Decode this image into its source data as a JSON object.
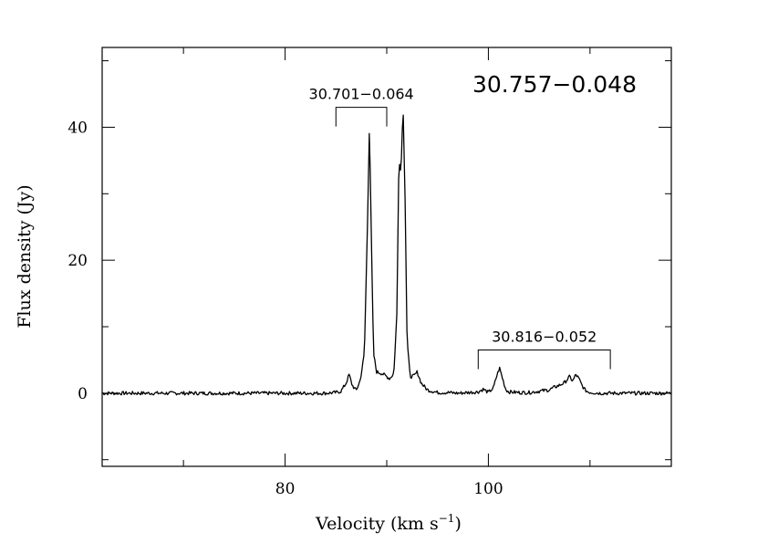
{
  "chart_data": {
    "type": "line",
    "title": "30.757−0.048",
    "xlabel": "Velocity (km s",
    "xlabel_exp": "−1",
    "xlabel_close": ")",
    "ylabel": "Flux density (Jy)",
    "xlim": [
      62,
      118
    ],
    "ylim": [
      -11,
      52
    ],
    "x_ticks": [
      80,
      100
    ],
    "x_tick_labels": [
      "80",
      "100"
    ],
    "x_minor_ticks": [
      70,
      90,
      110
    ],
    "y_ticks": [
      0,
      20,
      40
    ],
    "y_tick_labels": [
      "0",
      "20",
      "40"
    ],
    "y_minor_ticks": [
      -10,
      10,
      30,
      50
    ],
    "grid": false,
    "annotations": [
      {
        "label": "30.701−0.064",
        "x_start": 85,
        "x_end": 90,
        "y": 43
      },
      {
        "label": "30.816−0.052",
        "x_start": 99,
        "x_end": 112,
        "y": 6.5
      }
    ],
    "series": [
      {
        "x": [
          62,
          84,
          85,
          85.5,
          86,
          86.3,
          86.6,
          87,
          87.4,
          87.8,
          88.1,
          88.3,
          88.5,
          88.7,
          89,
          89.5,
          90,
          90.3,
          90.7,
          91,
          91.2,
          91.4,
          91.6,
          91.8,
          92,
          92.3,
          92.7,
          93,
          93.4,
          94,
          95,
          96,
          97,
          98,
          99,
          99.5,
          100,
          100.5,
          100.8,
          101.1,
          101.4,
          101.7,
          102,
          103,
          104,
          105,
          106,
          106.5,
          107,
          107.5,
          108,
          108.3,
          108.6,
          108.9,
          109.2,
          109.5,
          109.8,
          110.2,
          111,
          112,
          113,
          118
        ],
        "y": [
          0,
          0,
          0.1,
          0.3,
          1.5,
          2.8,
          1.2,
          0.4,
          2,
          6,
          25,
          40.5,
          22,
          6,
          3.2,
          3,
          2.5,
          2.2,
          3,
          12,
          35.5,
          33,
          43.5,
          30,
          8,
          2.5,
          2.6,
          3.2,
          1.5,
          0.5,
          0.1,
          0.1,
          0,
          0.1,
          0.2,
          0.6,
          0.1,
          0.8,
          2.5,
          3.8,
          2.2,
          0.6,
          0.2,
          0.1,
          0.1,
          0.3,
          0.5,
          0.9,
          1.2,
          1.6,
          2.5,
          1.8,
          2.8,
          2.2,
          1.2,
          0.5,
          0.2,
          0.1,
          0,
          0,
          0,
          0
        ]
      }
    ]
  }
}
